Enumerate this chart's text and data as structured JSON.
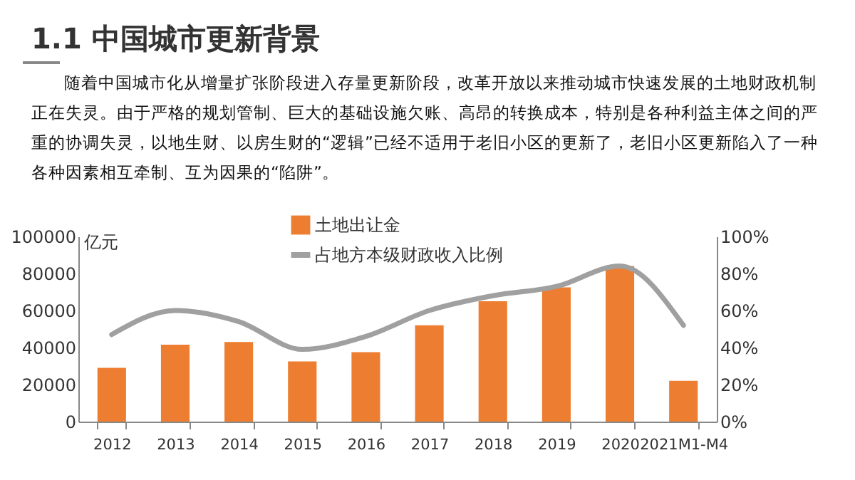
{
  "chart_data": {
    "type": "bar",
    "title": "1.1  中国城市更新背景",
    "subtitle": "随着中国城市化从增量扩张阶段进入存量更新阶段，改革开放以来推动城市快速发展的土地财政机制正在失灵。由于严格的规划管制、巨大的基础设施欠账、高昂的转换成本，特别是各种利益主体之间的严重的协调失灵，以地生财、以房生财的“逻辑”已经不适用于老旧小区的更新了，老旧小区更新陷入了一种各种因素相互牵制、互为因果的“陷阱”。",
    "ylabel": "亿元",
    "categories": [
      "2012",
      "2013",
      "2014",
      "2015",
      "2016",
      "2017",
      "2018",
      "2019",
      "2020",
      "2021M1-M4"
    ],
    "series": [
      {
        "name": "土地出让金",
        "color": "#ed7d31",
        "values": [
          29000,
          41500,
          43000,
          32500,
          37500,
          52000,
          65000,
          72500,
          84000,
          22000
        ]
      },
      {
        "name": "占地方本级财政收入比例",
        "type": "line",
        "axis": "y2",
        "color": "#a0a0a0",
        "values": [
          47,
          60,
          54,
          39,
          46,
          60,
          68,
          73,
          84,
          52
        ]
      }
    ],
    "ylim": [
      0,
      100000
    ],
    "yticks": [
      0,
      20000,
      40000,
      60000,
      80000,
      100000
    ],
    "y2lim": [
      0,
      100
    ],
    "y2ticks": [
      {
        "value": 0,
        "label": "0%"
      },
      {
        "value": 20,
        "label": "20%"
      },
      {
        "value": 40,
        "label": "40%"
      },
      {
        "value": 60,
        "label": "60%"
      },
      {
        "value": 80,
        "label": "80%"
      },
      {
        "value": 100,
        "label": "100%"
      }
    ],
    "legend": "top",
    "grid": false
  }
}
